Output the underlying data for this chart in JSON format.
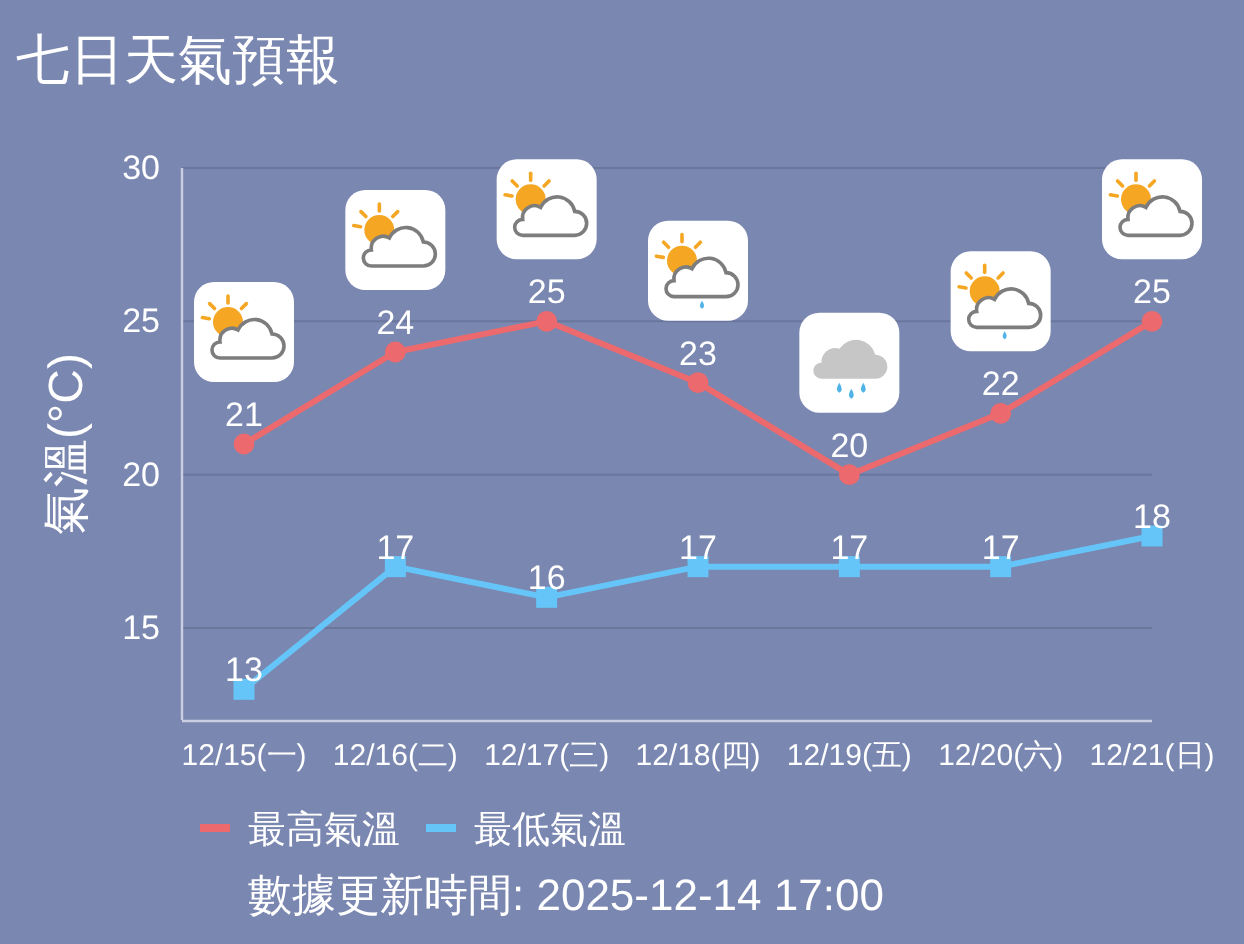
{
  "chart_data": {
    "type": "line",
    "title": "七日天氣預報",
    "ylabel": "氣溫(°C)",
    "categories": [
      "12/15(一)",
      "12/16(二)",
      "12/17(三)",
      "12/18(四)",
      "12/19(五)",
      "12/20(六)",
      "12/21(日)"
    ],
    "series": [
      {
        "name": "最高氣溫",
        "color": "#ec6a6e",
        "values": [
          21,
          24,
          25,
          23,
          20,
          22,
          25
        ],
        "marker": "circle"
      },
      {
        "name": "最低氣溫",
        "color": "#66c5f8",
        "values": [
          13,
          17,
          16,
          17,
          17,
          17,
          18
        ],
        "marker": "square"
      }
    ],
    "ylim": [
      12,
      30
    ],
    "yticks": [
      15,
      20,
      25,
      30
    ],
    "grid": "y",
    "legend": "bottom",
    "data_labels": true,
    "annotations": [
      "數據更新時間: 2025-12-14 17:00"
    ]
  }
}
